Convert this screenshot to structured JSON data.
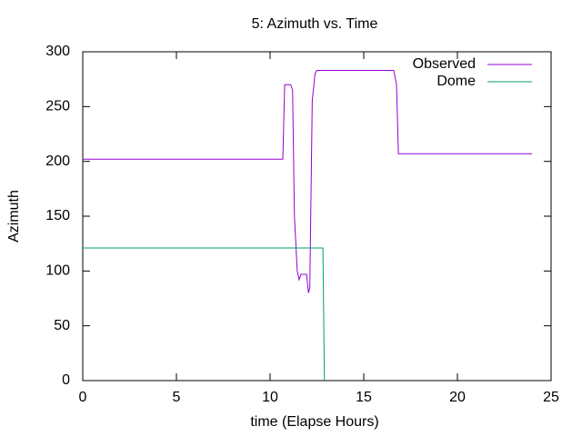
{
  "chart_data": {
    "type": "line",
    "title": "5: Azimuth vs. Time",
    "x_label": "time (Elapse Hours)",
    "y_label": "Azimuth",
    "xlim": [
      0,
      25
    ],
    "xticks": [
      0,
      5,
      10,
      15,
      20,
      25
    ],
    "ylim": [
      0,
      300
    ],
    "yticks": [
      0,
      50,
      100,
      150,
      200,
      250,
      300
    ],
    "legend": "top-right",
    "grid": false,
    "series": [
      {
        "name": "Observed",
        "color": "#9400d3",
        "x": [
          0,
          10.68,
          10.78,
          11.1,
          11.2,
          11.3,
          11.45,
          11.55,
          11.65,
          11.75,
          11.95,
          12.05,
          12.12,
          12.25,
          12.4,
          12.5,
          16.6,
          16.75,
          16.85,
          23.98
        ],
        "values": [
          202,
          202,
          270,
          270,
          265,
          150,
          100,
          92,
          97,
          97,
          97,
          80,
          85,
          255,
          280,
          283,
          283,
          270,
          207,
          207
        ]
      },
      {
        "name": "Dome",
        "color": "#009e73",
        "x": [
          0,
          12.82,
          12.9
        ],
        "values": [
          121,
          121,
          0
        ]
      }
    ]
  }
}
